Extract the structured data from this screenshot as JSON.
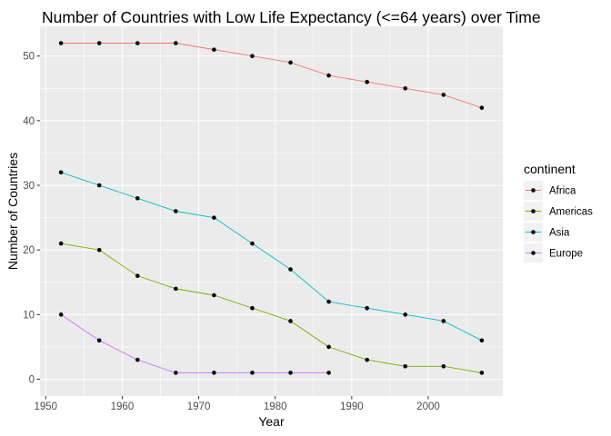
{
  "chart_data": {
    "type": "line",
    "title": "Number of Countries with Low Life Expectancy (<=64 years) over Time",
    "xlabel": "Year",
    "ylabel": "Number of Countries",
    "xlim": [
      1949.25,
      2009.75
    ],
    "ylim": [
      -2.6,
      54.6
    ],
    "x_ticks": [
      1950,
      1960,
      1970,
      1980,
      1990,
      2000
    ],
    "y_ticks": [
      0,
      10,
      20,
      30,
      40,
      50
    ],
    "grid": true,
    "legend": {
      "title": "continent",
      "position": "right"
    },
    "series": [
      {
        "name": "Africa",
        "color": "#F8766D",
        "x": [
          1952,
          1957,
          1962,
          1967,
          1972,
          1977,
          1982,
          1987,
          1992,
          1997,
          2002,
          2007
        ],
        "y": [
          52,
          52,
          52,
          52,
          51,
          50,
          49,
          47,
          46,
          45,
          44,
          42
        ]
      },
      {
        "name": "Americas",
        "color": "#7CAE00",
        "x": [
          1952,
          1957,
          1962,
          1967,
          1972,
          1977,
          1982,
          1987,
          1992,
          1997,
          2002,
          2007
        ],
        "y": [
          21,
          20,
          16,
          14,
          13,
          11,
          9,
          5,
          3,
          2,
          2,
          1
        ]
      },
      {
        "name": "Asia",
        "color": "#00BFC4",
        "x": [
          1952,
          1957,
          1962,
          1967,
          1972,
          1977,
          1982,
          1987,
          1992,
          1997,
          2002,
          2007
        ],
        "y": [
          32,
          30,
          28,
          26,
          25,
          21,
          17,
          12,
          11,
          10,
          9,
          6
        ]
      },
      {
        "name": "Europe",
        "color": "#C77CFF",
        "x": [
          1952,
          1957,
          1962,
          1967,
          1972,
          1977,
          1982,
          1987
        ],
        "y": [
          10,
          6,
          3,
          1,
          1,
          1,
          1,
          1
        ]
      }
    ]
  }
}
